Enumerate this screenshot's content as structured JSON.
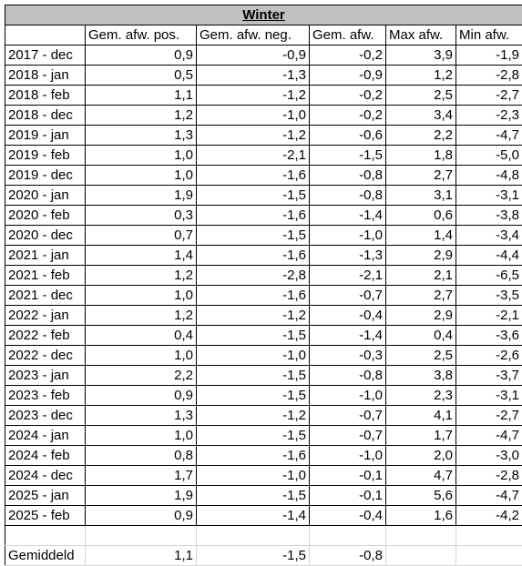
{
  "title": "Winter",
  "table": {
    "columns": [
      "Gem. afw. pos.",
      "Gem. afw. neg.",
      "Gem. afw.",
      "Max afw.",
      "Min afw."
    ],
    "rows": [
      [
        "2017 - dec",
        "0,9",
        "-0,9",
        "-0,2",
        "3,9",
        "-1,9"
      ],
      [
        "2018 - jan",
        "0,5",
        "-1,3",
        "-0,9",
        "1,2",
        "-2,8"
      ],
      [
        "2018 - feb",
        "1,1",
        "-1,2",
        "-0,2",
        "2,5",
        "-2,7"
      ],
      [
        "2018 - dec",
        "1,2",
        "-1,0",
        "-0,2",
        "3,4",
        "-2,3"
      ],
      [
        "2019 - jan",
        "1,3",
        "-1,2",
        "-0,6",
        "2,2",
        "-4,7"
      ],
      [
        "2019 - feb",
        "1,0",
        "-2,1",
        "-1,5",
        "1,8",
        "-5,0"
      ],
      [
        "2019 - dec",
        "1,0",
        "-1,6",
        "-0,8",
        "2,7",
        "-4,8"
      ],
      [
        "2020 - jan",
        "1,9",
        "-1,5",
        "-0,8",
        "3,1",
        "-3,1"
      ],
      [
        "2020 - feb",
        "0,3",
        "-1,6",
        "-1,4",
        "0,6",
        "-3,8"
      ],
      [
        "2020 - dec",
        "0,7",
        "-1,5",
        "-1,0",
        "1,4",
        "-3,4"
      ],
      [
        "2021 - jan",
        "1,4",
        "-1,6",
        "-1,3",
        "2,9",
        "-4,4"
      ],
      [
        "2021 - feb",
        "1,2",
        "-2,8",
        "-2,1",
        "2,1",
        "-6,5"
      ],
      [
        "2021 - dec",
        "1,0",
        "-1,6",
        "-0,7",
        "2,7",
        "-3,5"
      ],
      [
        "2022 - jan",
        "1,2",
        "-1,2",
        "-0,4",
        "2,9",
        "-2,1"
      ],
      [
        "2022 - feb",
        "0,4",
        "-1,5",
        "-1,4",
        "0,4",
        "-3,6"
      ],
      [
        "2022 - dec",
        "1,0",
        "-1,0",
        "-0,3",
        "2,5",
        "-2,6"
      ],
      [
        "2023 - jan",
        "2,2",
        "-1,5",
        "-0,8",
        "3,8",
        "-3,7"
      ],
      [
        "2023 - feb",
        "0,9",
        "-1,5",
        "-1,0",
        "2,3",
        "-3,1"
      ],
      [
        "2023 - dec",
        "1,3",
        "-1,2",
        "-0,7",
        "4,1",
        "-2,7"
      ],
      [
        "2024 - jan",
        "1,0",
        "-1,5",
        "-0,7",
        "1,7",
        "-4,7"
      ],
      [
        "2024 - feb",
        "0,8",
        "-1,6",
        "-1,0",
        "2,0",
        "-3,0"
      ],
      [
        "2024 - dec",
        "1,7",
        "-1,0",
        "-0,1",
        "4,7",
        "-2,8"
      ],
      [
        "2025 - jan",
        "1,9",
        "-1,5",
        "-0,1",
        "5,6",
        "-4,7"
      ],
      [
        "2025 - feb",
        "0,9",
        "-1,4",
        "-0,4",
        "1,6",
        "-4,2"
      ]
    ],
    "footer": {
      "label": "Gemiddeld",
      "values": [
        "1,1",
        "-1,5",
        "-0,8"
      ]
    }
  }
}
